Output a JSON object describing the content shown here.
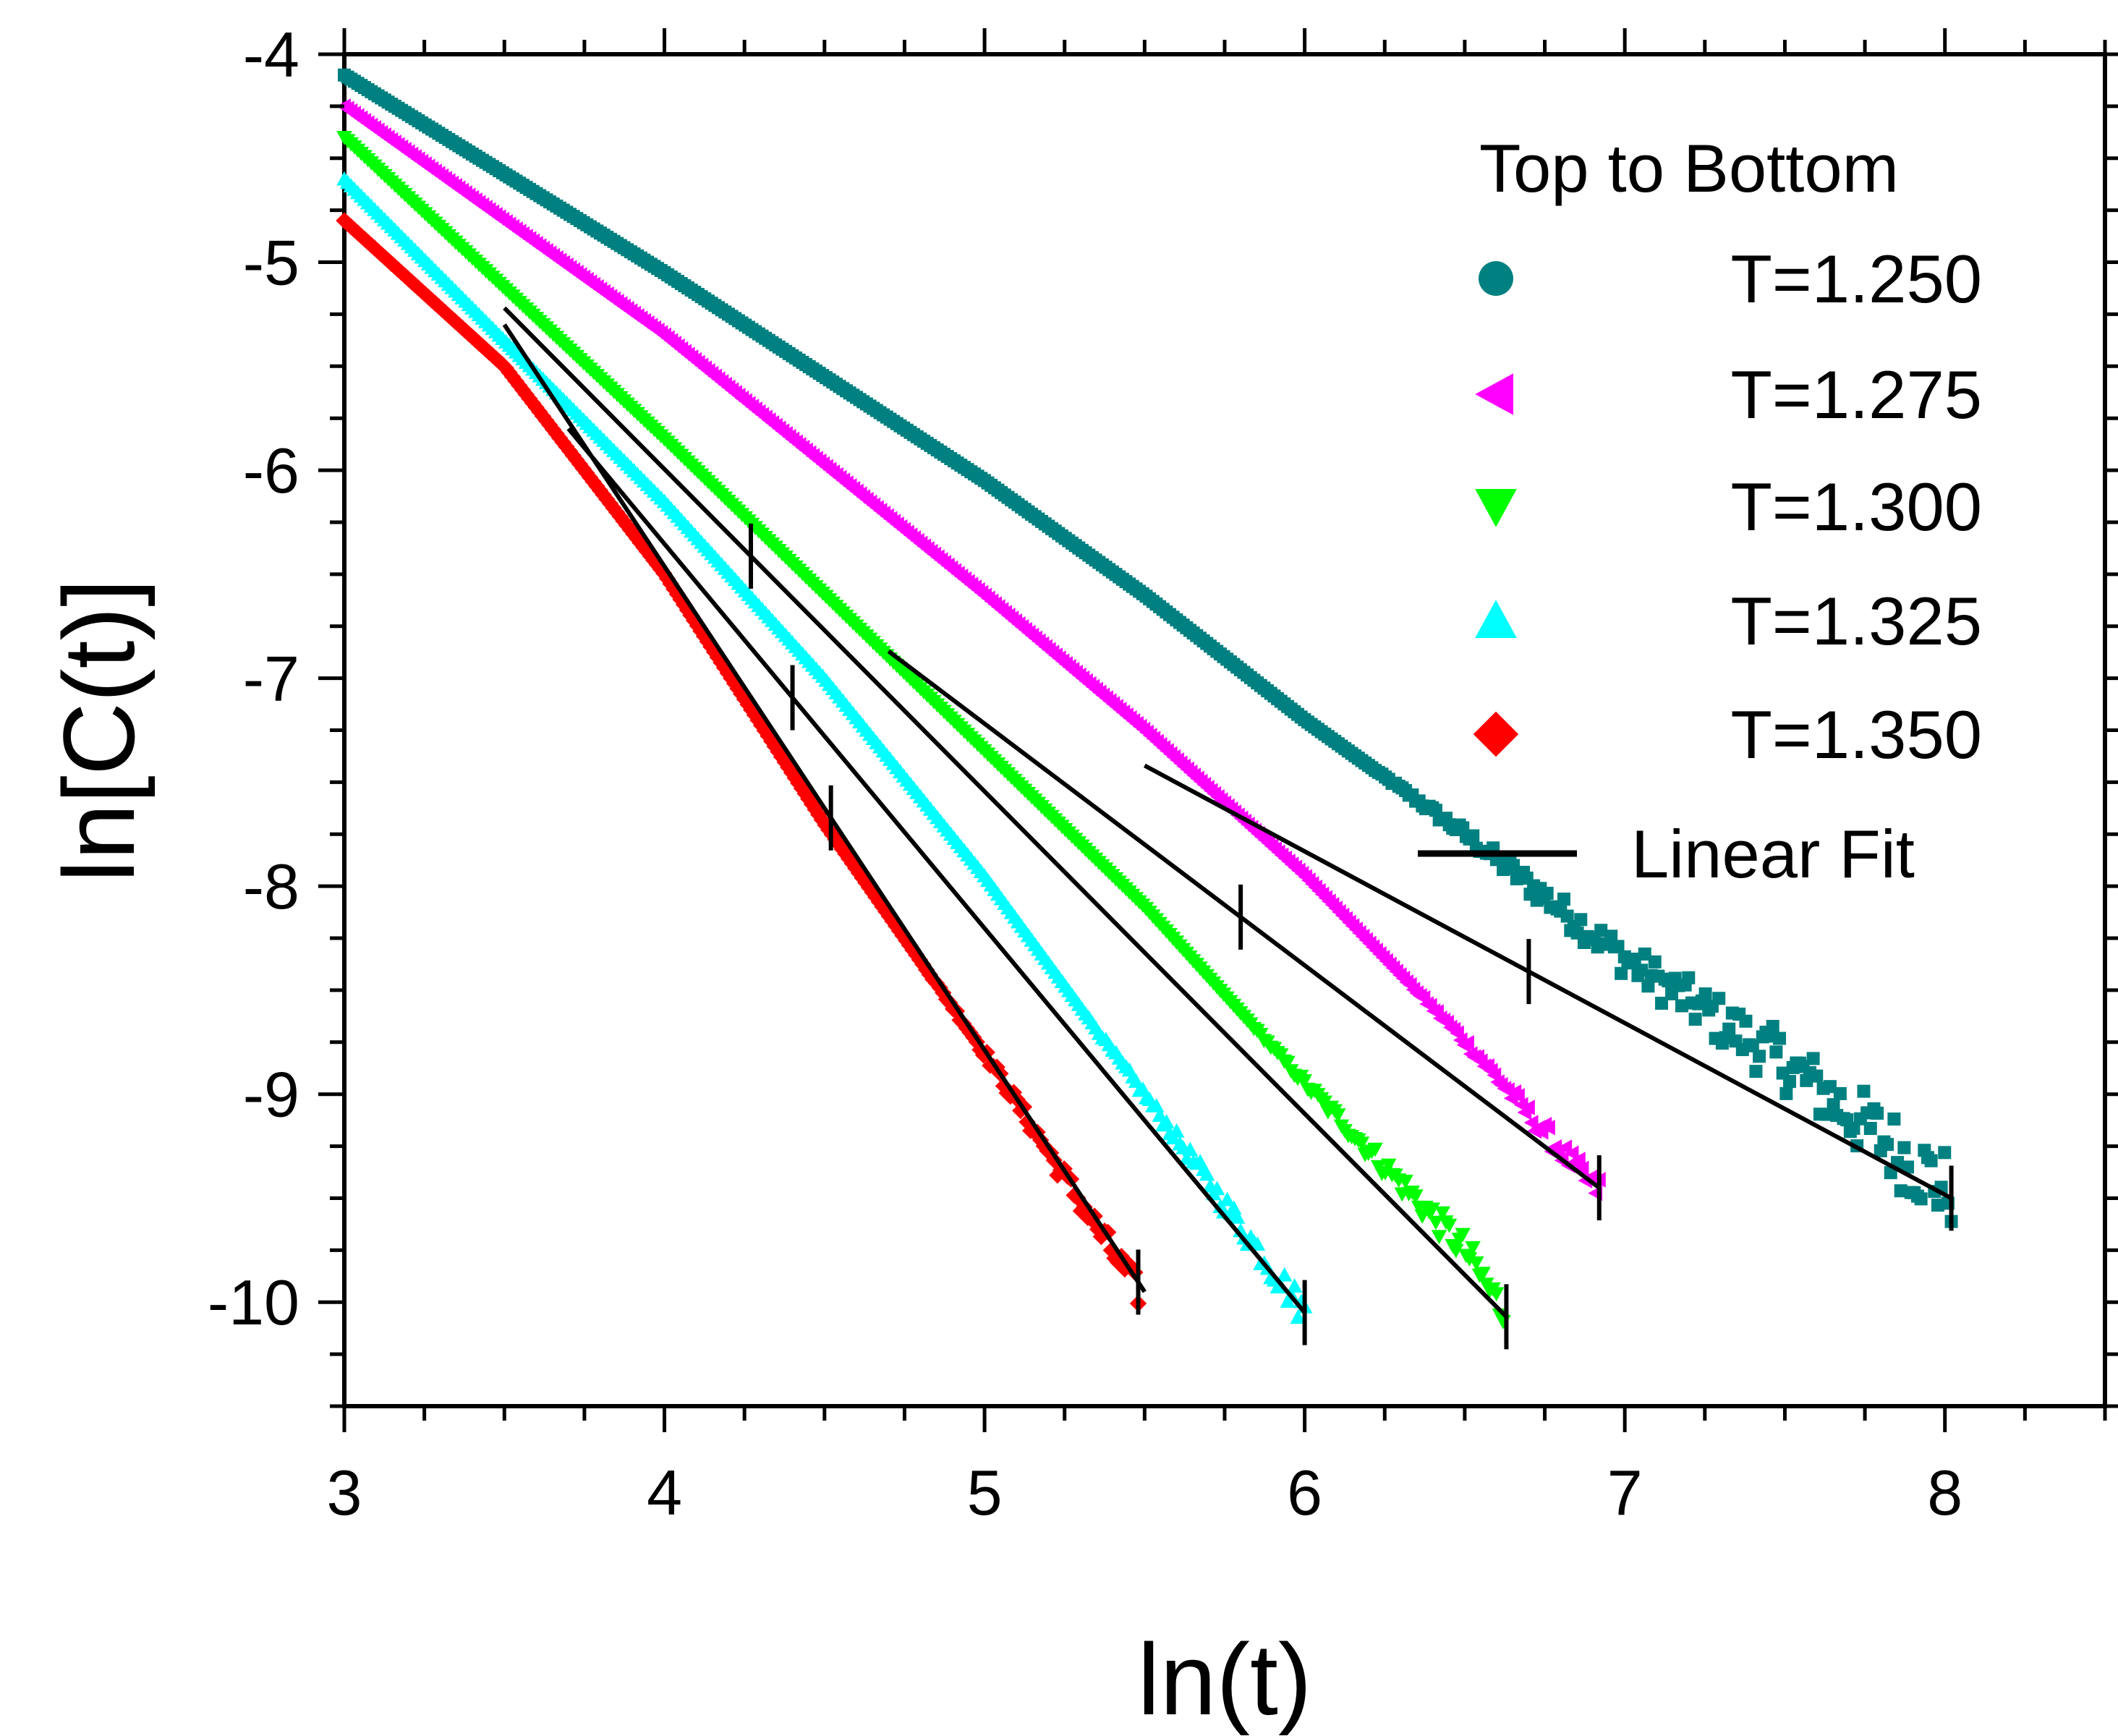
{
  "chart_data": {
    "type": "scatter",
    "xlabel": "ln(t)",
    "ylabel": "ln[C(t)]",
    "xlim": [
      3,
      8.5
    ],
    "ylim": [
      -10.5,
      -4
    ],
    "xticks": [
      "3",
      "4",
      "5",
      "6",
      "7",
      "8"
    ],
    "yticks": [
      "-4",
      "-5",
      "-6",
      "-7",
      "-8",
      "-9",
      "-10"
    ],
    "legend": {
      "position": "top-right",
      "title": "Top to Bottom",
      "fit_label": "Linear Fit"
    },
    "series": [
      {
        "name": "T=1.250",
        "color": "#008080",
        "marker": "square",
        "legend_marker": "circle",
        "curve": [
          [
            3.0,
            -4.1
          ],
          [
            4.0,
            -5.05
          ],
          [
            5.0,
            -6.05
          ],
          [
            5.5,
            -6.6
          ],
          [
            6.0,
            -7.2
          ],
          [
            6.5,
            -7.75
          ],
          [
            7.0,
            -8.35
          ],
          [
            7.5,
            -8.85
          ],
          [
            8.0,
            -9.45
          ]
        ],
        "range": [
          3.0,
          8.02
        ],
        "noise_from": 6.2,
        "fit": {
          "x1": 5.5,
          "x2": 8.02,
          "y1": -7.42,
          "y2": -9.5
        },
        "ticks": [
          6.7,
          8.02
        ]
      },
      {
        "name": "T=1.275",
        "color": "#ff00ff",
        "marker": "triangle-left",
        "legend_marker": "triangle-left",
        "curve": [
          [
            3.0,
            -4.25
          ],
          [
            4.0,
            -5.35
          ],
          [
            5.0,
            -6.6
          ],
          [
            5.5,
            -7.25
          ],
          [
            6.0,
            -7.95
          ],
          [
            6.5,
            -8.75
          ],
          [
            6.9,
            -9.45
          ]
        ],
        "range": [
          3.0,
          6.92
        ],
        "noise_from": 6.3,
        "fit": {
          "x1": 4.7,
          "x2": 6.92,
          "y1": -6.87,
          "y2": -9.45
        },
        "ticks": [
          5.8,
          6.92
        ]
      },
      {
        "name": "T=1.300",
        "color": "#00ff00",
        "marker": "triangle-down",
        "legend_marker": "triangle-down",
        "curve": [
          [
            3.0,
            -4.4
          ],
          [
            4.0,
            -5.85
          ],
          [
            4.5,
            -6.6
          ],
          [
            5.0,
            -7.35
          ],
          [
            5.5,
            -8.1
          ],
          [
            6.0,
            -8.95
          ],
          [
            6.5,
            -9.75
          ],
          [
            6.62,
            -10.05
          ]
        ],
        "range": [
          3.0,
          6.62
        ],
        "noise_from": 5.8,
        "fit": {
          "x1": 3.5,
          "x2": 6.63,
          "y1": -5.22,
          "y2": -10.07
        },
        "ticks": [
          4.27,
          6.63
        ]
      },
      {
        "name": "T=1.325",
        "color": "#00ffff",
        "marker": "triangle-up",
        "legend_marker": "triangle-up",
        "curve": [
          [
            3.0,
            -4.6
          ],
          [
            4.0,
            -6.15
          ],
          [
            4.5,
            -7.0
          ],
          [
            5.0,
            -7.95
          ],
          [
            5.5,
            -9.0
          ],
          [
            6.0,
            -10.05
          ]
        ],
        "range": [
          3.0,
          6.0
        ],
        "noise_from": 5.3,
        "fit": {
          "x1": 3.7,
          "x2": 6.0,
          "y1": -5.8,
          "y2": -10.05
        },
        "ticks": [
          4.4,
          6.0
        ]
      },
      {
        "name": "T=1.350",
        "color": "#ff0000",
        "marker": "diamond",
        "legend_marker": "diamond",
        "curve": [
          [
            3.0,
            -4.8
          ],
          [
            3.5,
            -5.5
          ],
          [
            4.0,
            -6.5
          ],
          [
            4.5,
            -7.7
          ],
          [
            5.0,
            -8.8
          ],
          [
            5.48,
            -9.95
          ]
        ],
        "range": [
          3.0,
          5.48
        ],
        "noise_from": 4.8,
        "fit": {
          "x1": 3.5,
          "x2": 5.5,
          "y1": -5.3,
          "y2": -9.95
        },
        "ticks": [
          4.52,
          5.48
        ]
      }
    ]
  }
}
